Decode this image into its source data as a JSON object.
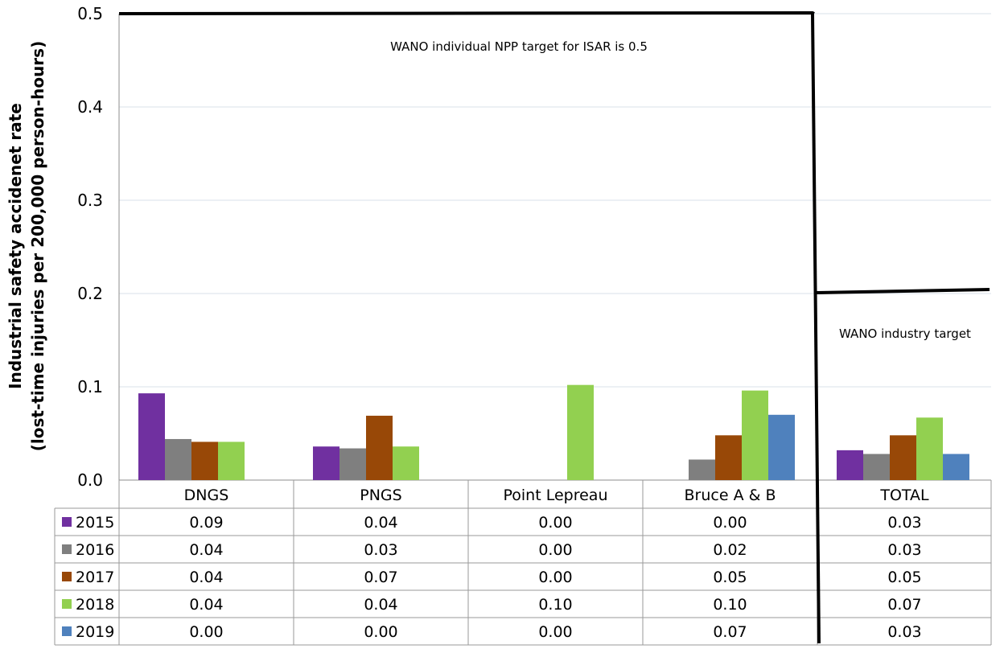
{
  "chart_data": {
    "type": "bar",
    "ylabel_line1": "Industrial safety accidenet rate",
    "ylabel_line2": "(lost-time injuries per 200,000 person-hours)",
    "ylim": [
      0,
      0.5
    ],
    "yticks": [
      "0.0",
      "0.1",
      "0.2",
      "0.3",
      "0.4",
      "0.5"
    ],
    "grid": true,
    "categories": [
      "DNGS",
      "PNGS",
      "Point Lepreau",
      "Bruce A & B",
      "TOTAL"
    ],
    "series": [
      {
        "name": "2015",
        "color": "#7030a0",
        "values": [
          0.093,
          0.036,
          0.0,
          0.0,
          0.032
        ]
      },
      {
        "name": "2016",
        "color": "#7f7f7f",
        "values": [
          0.044,
          0.034,
          0.0,
          0.022,
          0.028
        ]
      },
      {
        "name": "2017",
        "color": "#984807",
        "values": [
          0.041,
          0.069,
          0.0,
          0.048,
          0.048
        ]
      },
      {
        "name": "2018",
        "color": "#92d050",
        "values": [
          0.041,
          0.036,
          0.102,
          0.096,
          0.067
        ]
      },
      {
        "name": "2019",
        "color": "#4f81bd",
        "values": [
          0.0,
          0.0,
          0.0,
          0.07,
          0.028
        ]
      }
    ],
    "table": [
      [
        "0.09",
        "0.04",
        "0.00",
        "0.00",
        "0.03"
      ],
      [
        "0.04",
        "0.03",
        "0.00",
        "0.02",
        "0.03"
      ],
      [
        "0.04",
        "0.07",
        "0.00",
        "0.05",
        "0.05"
      ],
      [
        "0.04",
        "0.04",
        "0.10",
        "0.10",
        "0.07"
      ],
      [
        "0.00",
        "0.00",
        "0.00",
        "0.07",
        "0.03"
      ]
    ],
    "annotations": {
      "individual_target_text": "WANO individual NPP target for ISAR is 0.5",
      "individual_target_value": 0.5,
      "industry_target_text": "WANO industry target",
      "industry_target_value": 0.2
    }
  }
}
